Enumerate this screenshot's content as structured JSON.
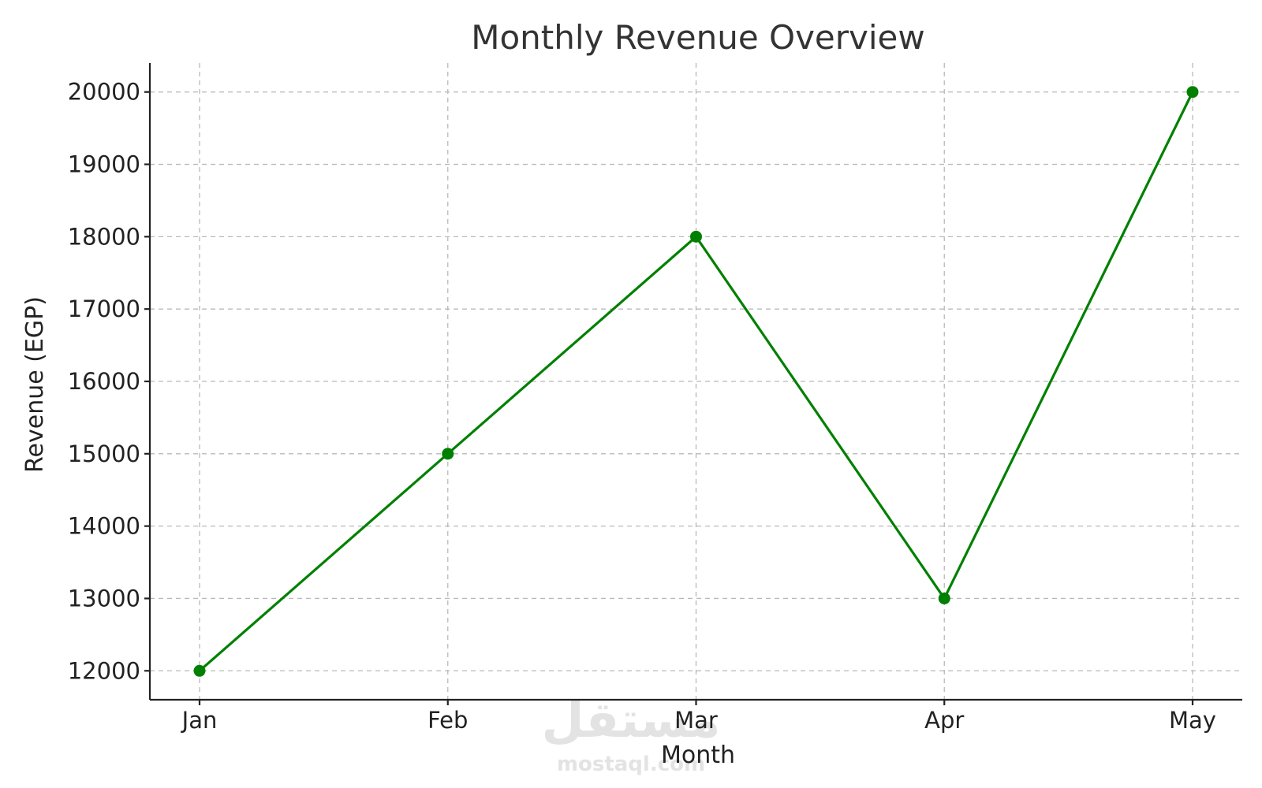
{
  "chart_data": {
    "type": "line",
    "title": "Monthly Revenue Overview",
    "xlabel": "Month",
    "ylabel": "Revenue (EGP)",
    "categories": [
      "Jan",
      "Feb",
      "Mar",
      "Apr",
      "May"
    ],
    "series": [
      {
        "values": [
          12000,
          15000,
          18000,
          13000,
          20000
        ],
        "color": "#008000",
        "marker": "circle"
      }
    ],
    "yticks": [
      12000,
      13000,
      14000,
      15000,
      16000,
      17000,
      18000,
      19000,
      20000
    ],
    "ylim": [
      11600,
      20400
    ],
    "grid": true,
    "legend": "none"
  },
  "watermark": {
    "arabic": "مستقل",
    "latin": "mostaql.com"
  }
}
